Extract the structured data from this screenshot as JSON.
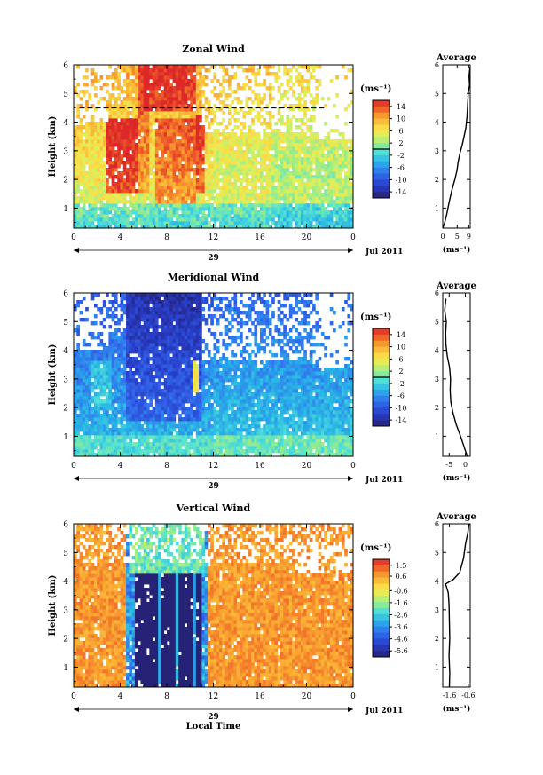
{
  "shared": {
    "xlabel": "Local Time",
    "date_label": "29",
    "month_label": "Jul 2011",
    "ylabel": "Height (km)",
    "cbar_unit": "(ms⁻¹)",
    "avg_unit": "(ms⁻¹)",
    "x_ticks": [
      "0",
      "4",
      "8",
      "12",
      "16",
      "20",
      "0"
    ],
    "y_ticks": [
      "1",
      "2",
      "3",
      "4",
      "5",
      "6"
    ]
  },
  "chart_data": [
    {
      "type": "heatmap",
      "id": "zonal",
      "title": "Zonal Wind",
      "xlabel": "Local Time",
      "ylabel": "Height (km)",
      "xlim": [
        0,
        24
      ],
      "ylim": [
        0.3,
        6
      ],
      "colorbar": {
        "unit": "(ms⁻¹)",
        "range": [
          -16,
          16
        ],
        "tick_labels": [
          "14",
          "10",
          "6",
          "2",
          "-2",
          "-6",
          "-10",
          "-14"
        ],
        "tick_values": [
          14,
          10,
          6,
          2,
          -2,
          -6,
          -10,
          -14
        ],
        "black_line_at": 0
      },
      "profile_title": "Average",
      "profile_xlim": [
        0,
        9.5
      ],
      "profile_xticks": [
        "0",
        "5",
        "9"
      ],
      "profile_xtick_values": [
        0,
        5,
        9
      ],
      "profile": [
        [
          0.0,
          0.3
        ],
        [
          0.7,
          0.5
        ],
        [
          1.4,
          0.8
        ],
        [
          2.2,
          1.2
        ],
        [
          3.1,
          1.6
        ],
        [
          4.2,
          2.0
        ],
        [
          4.9,
          2.3
        ],
        [
          5.3,
          2.6
        ],
        [
          5.9,
          2.9
        ],
        [
          6.7,
          3.2
        ],
        [
          7.4,
          3.5
        ],
        [
          8.0,
          3.8
        ],
        [
          8.4,
          4.2
        ],
        [
          8.6,
          4.6
        ],
        [
          8.8,
          5.0
        ],
        [
          9.3,
          5.3
        ],
        [
          9.1,
          5.6
        ],
        [
          9.4,
          5.9
        ]
      ],
      "dashed_line": {
        "height_km": 4.5,
        "x_start": 0.5,
        "x_end": 21.5
      }
    },
    {
      "type": "heatmap",
      "id": "meridional",
      "title": "Meridional Wind",
      "xlabel": "Local Time",
      "ylabel": "Height (km)",
      "xlim": [
        0,
        24
      ],
      "ylim": [
        0.3,
        6
      ],
      "colorbar": {
        "unit": "(ms⁻¹)",
        "range": [
          -16,
          16
        ],
        "tick_labels": [
          "14",
          "10",
          "6",
          "2",
          "-2",
          "-6",
          "-10",
          "-14"
        ],
        "tick_values": [
          14,
          10,
          6,
          2,
          -2,
          -6,
          -10,
          -14
        ],
        "black_line_at": 0
      },
      "profile_title": "Average",
      "profile_xlim": [
        -7,
        1.5
      ],
      "profile_xticks": [
        "-5",
        "0"
      ],
      "profile_xtick_values": [
        -5,
        0
      ],
      "profile": [
        [
          0.6,
          0.3
        ],
        [
          -0.3,
          0.6
        ],
        [
          -1.5,
          1.0
        ],
        [
          -2.8,
          1.4
        ],
        [
          -3.8,
          1.8
        ],
        [
          -4.5,
          2.2
        ],
        [
          -4.7,
          2.6
        ],
        [
          -4.6,
          3.0
        ],
        [
          -4.9,
          3.4
        ],
        [
          -5.6,
          3.8
        ],
        [
          -6.0,
          4.2
        ],
        [
          -6.1,
          4.6
        ],
        [
          -5.9,
          5.0
        ],
        [
          -6.4,
          5.4
        ],
        [
          -6.0,
          5.8
        ]
      ]
    },
    {
      "type": "heatmap",
      "id": "vertical",
      "title": "Vertical Wind",
      "xlabel": "Local Time",
      "ylabel": "Height (km)",
      "xlim": [
        0,
        24
      ],
      "ylim": [
        0.3,
        6
      ],
      "colorbar": {
        "unit": "(ms⁻¹)",
        "range": [
          -6.1,
          2.0
        ],
        "tick_labels": [
          "1.5",
          "0.6",
          "-0.6",
          "-1.6",
          "-2.6",
          "-3.6",
          "-4.6",
          "-5.6"
        ],
        "tick_values": [
          1.5,
          0.6,
          -0.6,
          -1.6,
          -2.6,
          -3.6,
          -4.6,
          -5.6
        ]
      },
      "profile_title": "Average",
      "profile_xlim": [
        -1.95,
        -0.5
      ],
      "profile_xticks": [
        "-1.6",
        "-0.6"
      ],
      "profile_xtick_values": [
        -1.6,
        -0.6
      ],
      "profile": [
        [
          -1.6,
          0.3
        ],
        [
          -1.58,
          0.8
        ],
        [
          -1.62,
          1.4
        ],
        [
          -1.58,
          2.0
        ],
        [
          -1.6,
          2.6
        ],
        [
          -1.62,
          3.2
        ],
        [
          -1.66,
          3.6
        ],
        [
          -1.8,
          3.9
        ],
        [
          -1.4,
          4.05
        ],
        [
          -1.05,
          4.3
        ],
        [
          -0.85,
          4.8
        ],
        [
          -0.75,
          5.3
        ],
        [
          -0.62,
          5.7
        ],
        [
          -0.56,
          6.0
        ]
      ]
    }
  ]
}
